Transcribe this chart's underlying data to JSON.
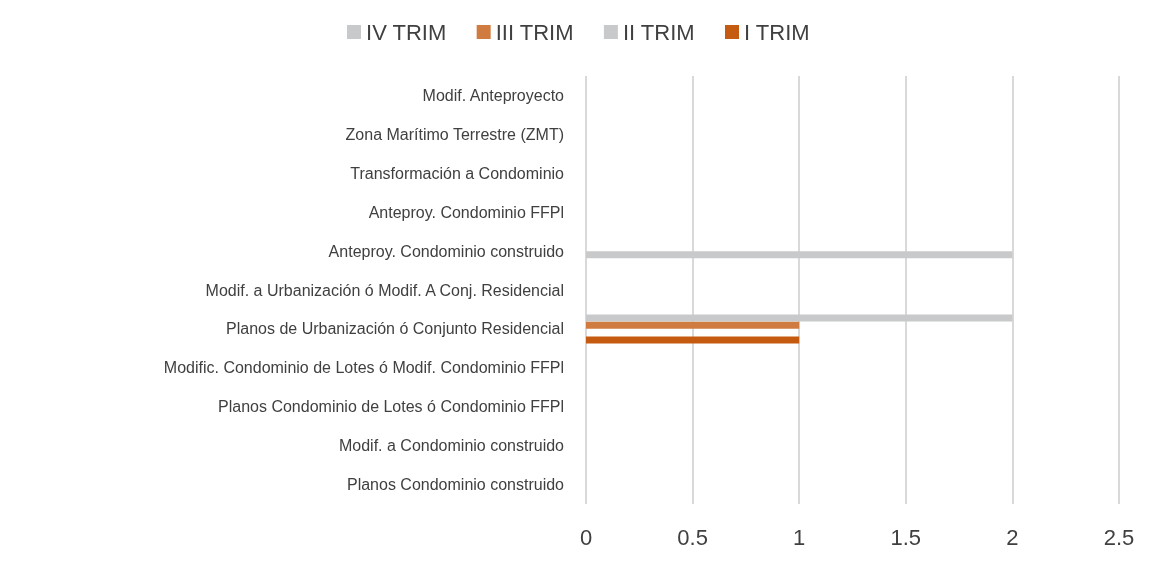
{
  "chart_data": {
    "type": "bar",
    "orientation": "horizontal",
    "legend": "top",
    "grid": "x",
    "categories": [
      "Modif. Anteproyecto",
      "Zona Marítimo Terrestre (ZMT)",
      "Transformación a Condominio",
      "Anteproy. Condominio FFPl",
      "Anteproy. Condominio construido",
      "Modif. a Urbanización ó Modif. A Conj. Residencial",
      "Planos de Urbanización ó Conjunto Residencial",
      "Modific. Condominio de Lotes ó Modif. Condominio FFPl",
      "Planos Condominio de Lotes ó Condominio FFPl",
      "Modif. a Condominio construido",
      "Planos Condominio construido"
    ],
    "series": [
      {
        "name": "IV TRIM",
        "color": "#c8c9ca",
        "values": [
          0,
          0,
          0,
          0,
          0,
          0,
          2,
          0,
          0,
          0,
          0
        ]
      },
      {
        "name": "III TRIM",
        "color": "#d07b40",
        "values": [
          0,
          0,
          0,
          0,
          0,
          0,
          1,
          0,
          0,
          0,
          0
        ]
      },
      {
        "name": "II TRIM",
        "color": "#c8c9ca",
        "values": [
          0,
          0,
          0,
          0,
          2,
          0,
          0,
          0,
          0,
          0,
          0
        ]
      },
      {
        "name": "I TRIM",
        "color": "#c55a11",
        "values": [
          0,
          0,
          0,
          0,
          0,
          0,
          1,
          0,
          0,
          0,
          0
        ]
      }
    ],
    "xlim": [
      0,
      2.5
    ],
    "xticks": [
      0,
      0.5,
      1,
      1.5,
      2,
      2.5
    ]
  }
}
